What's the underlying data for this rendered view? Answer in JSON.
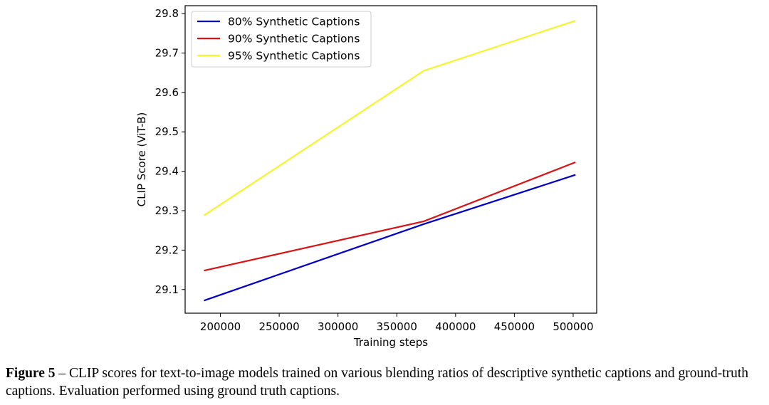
{
  "chart_data": {
    "type": "line",
    "xlabel": "Training steps",
    "ylabel": "CLIP Score (ViT-B)",
    "xlim": [
      170000,
      520000
    ],
    "ylim": [
      29.04,
      29.82
    ],
    "x_ticks": [
      "200000",
      "250000",
      "300000",
      "350000",
      "400000",
      "450000",
      "500000"
    ],
    "y_ticks": [
      "29.1",
      "29.2",
      "29.3",
      "29.4",
      "29.5",
      "29.6",
      "29.7",
      "29.8"
    ],
    "x": [
      186000,
      373000,
      502000
    ],
    "series": [
      {
        "name": "80% Synthetic Captions",
        "color": "#0000cc",
        "values": [
          29.072,
          29.266,
          29.391
        ]
      },
      {
        "name": "90% Synthetic Captions",
        "color": "#dd1111",
        "values": [
          29.148,
          29.273,
          29.423
        ]
      },
      {
        "name": "95% Synthetic Captions",
        "color": "#f5f52a",
        "values": [
          29.288,
          29.655,
          29.782
        ]
      }
    ],
    "legend_position": "top-left",
    "grid": false
  },
  "caption": {
    "label": "Figure 5",
    "text": " – CLIP scores for text-to-image models trained on various blending ratios of descriptive synthetic captions and ground-truth captions. Evaluation performed using ground truth captions."
  }
}
